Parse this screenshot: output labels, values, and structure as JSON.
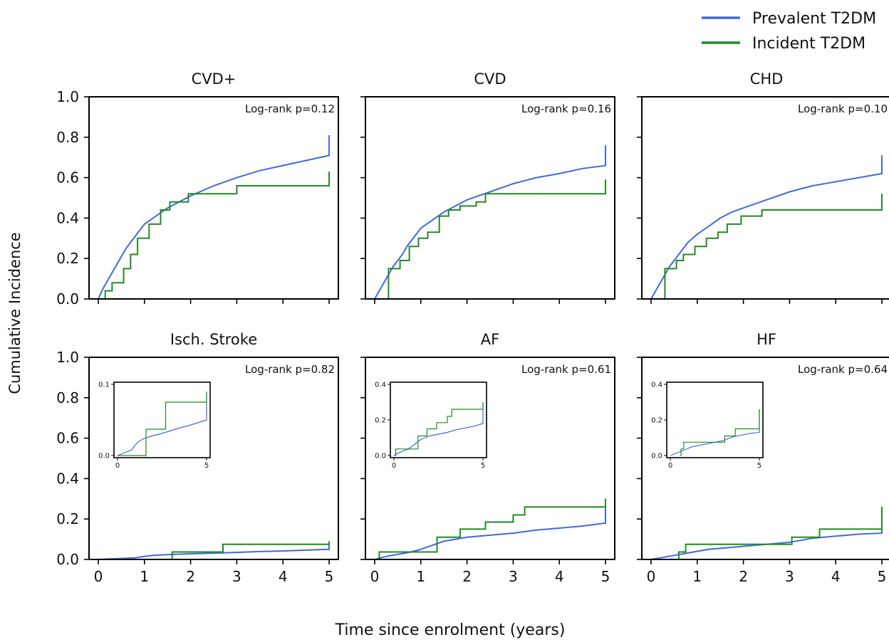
{
  "figure": {
    "ylabel": "Cumulative Incidence",
    "xlabel": "Time since enrolment (years)"
  },
  "legend": {
    "placement": "top-right",
    "entries": [
      {
        "label": "Prevalent T2DM",
        "color": "#4169e1"
      },
      {
        "label": "Incident T2DM",
        "color": "#228b22"
      }
    ]
  },
  "colors": {
    "prevalent": "#4169e1",
    "incident": "#228b22"
  },
  "axis": {
    "xlim": [
      -0.2,
      5.2
    ],
    "ylim": [
      0,
      1
    ],
    "xticks": [
      0,
      1,
      2,
      3,
      4,
      5
    ],
    "yticks": [
      0,
      0.2,
      0.4,
      0.6,
      0.8,
      1.0
    ],
    "xtick_labels": [
      "0",
      "1",
      "2",
      "3",
      "4",
      "5"
    ],
    "ytick_labels": [
      "0.0",
      "0.2",
      "0.4",
      "0.6",
      "0.8",
      "1.0"
    ]
  },
  "chart_data": [
    {
      "type": "line",
      "title": "CVD+",
      "annotation": "Log-rank p=0.12",
      "series": [
        {
          "name": "Prevalent T2DM",
          "x": [
            0.0,
            0.1,
            0.2,
            0.3,
            0.4,
            0.5,
            0.6,
            0.7,
            0.8,
            0.9,
            1.0,
            1.25,
            1.5,
            1.75,
            2.0,
            2.5,
            3.0,
            3.5,
            4.0,
            4.5,
            5.0,
            5.0
          ],
          "y": [
            0.0,
            0.05,
            0.09,
            0.13,
            0.17,
            0.21,
            0.25,
            0.28,
            0.31,
            0.34,
            0.37,
            0.41,
            0.45,
            0.48,
            0.51,
            0.56,
            0.6,
            0.635,
            0.66,
            0.685,
            0.71,
            0.81
          ]
        },
        {
          "name": "Incident T2DM",
          "x": [
            0.05,
            0.15,
            0.3,
            0.55,
            0.7,
            0.85,
            1.1,
            1.35,
            1.55,
            1.95,
            3.0,
            5.0,
            5.0
          ],
          "y": [
            0.0,
            0.04,
            0.08,
            0.15,
            0.22,
            0.3,
            0.37,
            0.44,
            0.48,
            0.52,
            0.56,
            0.56,
            0.63
          ]
        }
      ]
    },
    {
      "type": "line",
      "title": "CVD",
      "annotation": "Log-rank p=0.16",
      "series": [
        {
          "name": "Prevalent T2DM",
          "x": [
            0.0,
            0.1,
            0.2,
            0.3,
            0.4,
            0.5,
            0.6,
            0.7,
            0.8,
            0.9,
            1.0,
            1.25,
            1.5,
            1.75,
            2.0,
            2.5,
            3.0,
            3.5,
            4.0,
            4.5,
            5.0,
            5.0
          ],
          "y": [
            0.0,
            0.04,
            0.08,
            0.12,
            0.16,
            0.19,
            0.22,
            0.26,
            0.29,
            0.32,
            0.35,
            0.39,
            0.43,
            0.46,
            0.49,
            0.53,
            0.57,
            0.6,
            0.62,
            0.645,
            0.66,
            0.76
          ]
        },
        {
          "name": "Incident T2DM",
          "x": [
            0.25,
            0.3,
            0.55,
            0.75,
            0.95,
            1.15,
            1.4,
            1.6,
            1.85,
            2.2,
            2.4,
            5.0,
            5.0
          ],
          "y": [
            0.0,
            0.15,
            0.19,
            0.26,
            0.3,
            0.33,
            0.41,
            0.44,
            0.46,
            0.48,
            0.52,
            0.52,
            0.59
          ]
        }
      ]
    },
    {
      "type": "line",
      "title": "CHD",
      "annotation": "Log-rank p=0.10",
      "series": [
        {
          "name": "Prevalent T2DM",
          "x": [
            0.0,
            0.1,
            0.2,
            0.3,
            0.4,
            0.5,
            0.6,
            0.7,
            0.8,
            0.9,
            1.0,
            1.25,
            1.5,
            1.75,
            2.0,
            2.5,
            3.0,
            3.5,
            4.0,
            4.5,
            5.0,
            5.0
          ],
          "y": [
            0.0,
            0.04,
            0.08,
            0.12,
            0.16,
            0.19,
            0.22,
            0.25,
            0.28,
            0.3,
            0.32,
            0.36,
            0.4,
            0.43,
            0.45,
            0.49,
            0.53,
            0.56,
            0.58,
            0.6,
            0.62,
            0.71
          ]
        },
        {
          "name": "Incident T2DM",
          "x": [
            0.25,
            0.3,
            0.55,
            0.7,
            0.95,
            1.2,
            1.45,
            1.65,
            1.95,
            2.4,
            5.0,
            5.0
          ],
          "y": [
            0.0,
            0.15,
            0.19,
            0.22,
            0.26,
            0.3,
            0.33,
            0.37,
            0.41,
            0.44,
            0.44,
            0.52
          ]
        }
      ]
    },
    {
      "type": "line",
      "title": "Isch. Stroke",
      "annotation": "Log-rank p=0.82",
      "series": [
        {
          "name": "Prevalent T2DM",
          "x": [
            0.0,
            0.3,
            0.5,
            0.8,
            1.0,
            1.2,
            1.5,
            2.0,
            2.5,
            3.0,
            3.5,
            4.0,
            4.5,
            5.0,
            5.0
          ],
          "y": [
            0.0,
            0.003,
            0.005,
            0.008,
            0.015,
            0.02,
            0.024,
            0.028,
            0.031,
            0.035,
            0.039,
            0.042,
            0.046,
            0.05,
            0.085
          ]
        },
        {
          "name": "Incident T2DM",
          "x": [
            0.0,
            0.6,
            1.6,
            2.7,
            5.0,
            5.0
          ],
          "y": [
            0.0,
            0.0,
            0.037,
            0.075,
            0.075,
            0.09
          ]
        }
      ],
      "inset": {
        "xlim": [
          0,
          5
        ],
        "ylim": [
          0,
          0.1
        ],
        "xtick_labels": [
          "0",
          "5"
        ],
        "ytick_labels": [
          "0.0",
          "0.1"
        ]
      }
    },
    {
      "type": "line",
      "title": "AF",
      "annotation": "Log-rank p=0.61",
      "series": [
        {
          "name": "Prevalent T2DM",
          "x": [
            0.0,
            0.25,
            0.5,
            0.75,
            1.0,
            1.25,
            1.5,
            1.75,
            2.0,
            2.5,
            3.0,
            3.5,
            4.0,
            4.5,
            5.0,
            5.0
          ],
          "y": [
            0.0,
            0.015,
            0.025,
            0.035,
            0.05,
            0.07,
            0.09,
            0.1,
            0.11,
            0.12,
            0.13,
            0.145,
            0.155,
            0.165,
            0.18,
            0.3
          ]
        },
        {
          "name": "Incident T2DM",
          "x": [
            0.05,
            0.1,
            1.35,
            1.85,
            2.4,
            3.0,
            3.25,
            5.0,
            5.0
          ],
          "y": [
            0.0,
            0.037,
            0.11,
            0.15,
            0.185,
            0.22,
            0.26,
            0.26,
            0.3
          ]
        }
      ],
      "inset": {
        "xlim": [
          0,
          5
        ],
        "ylim": [
          0,
          0.4
        ],
        "xtick_labels": [
          "0",
          "5"
        ],
        "ytick_labels": [
          "0.0",
          "0.2",
          "0.4"
        ]
      }
    },
    {
      "type": "line",
      "title": "HF",
      "annotation": "Log-rank p=0.64",
      "series": [
        {
          "name": "Prevalent T2DM",
          "x": [
            0.0,
            0.25,
            0.5,
            0.75,
            1.0,
            1.25,
            1.5,
            2.0,
            2.5,
            3.0,
            3.5,
            4.0,
            4.5,
            5.0,
            5.0
          ],
          "y": [
            0.0,
            0.01,
            0.02,
            0.03,
            0.04,
            0.05,
            0.055,
            0.065,
            0.075,
            0.085,
            0.105,
            0.115,
            0.125,
            0.13,
            0.26
          ]
        },
        {
          "name": "Incident T2DM",
          "x": [
            0.55,
            0.6,
            0.75,
            2.95,
            3.05,
            3.65,
            5.0,
            5.0
          ],
          "y": [
            0.0,
            0.037,
            0.075,
            0.075,
            0.11,
            0.15,
            0.185,
            0.26
          ]
        }
      ],
      "inset": {
        "xlim": [
          0,
          5
        ],
        "ylim": [
          0,
          0.4
        ],
        "xtick_labels": [
          "0",
          "5"
        ],
        "ytick_labels": [
          "0.0",
          "0.2",
          "0.4"
        ]
      }
    }
  ]
}
